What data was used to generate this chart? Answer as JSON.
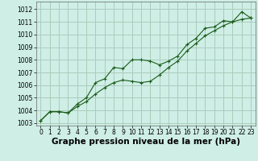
{
  "xlabel": "Graphe pression niveau de la mer (hPa)",
  "background_color": "#ceeee6",
  "grid_color": "#aaccbb",
  "line_color": "#1a5c1a",
  "xlim": [
    -0.5,
    23.5
  ],
  "ylim": [
    1002.8,
    1012.6
  ],
  "yticks": [
    1003,
    1004,
    1005,
    1006,
    1007,
    1008,
    1009,
    1010,
    1011,
    1012
  ],
  "xticks": [
    0,
    1,
    2,
    3,
    4,
    5,
    6,
    7,
    8,
    9,
    10,
    11,
    12,
    13,
    14,
    15,
    16,
    17,
    18,
    19,
    20,
    21,
    22,
    23
  ],
  "series1_x": [
    0,
    1,
    2,
    3,
    4,
    5,
    6,
    7,
    8,
    9,
    10,
    11,
    12,
    13,
    14,
    15,
    16,
    17,
    18,
    19,
    20,
    21,
    22,
    23
  ],
  "series1_y": [
    1003.2,
    1003.9,
    1003.9,
    1003.8,
    1004.5,
    1005.0,
    1006.2,
    1006.5,
    1007.4,
    1007.3,
    1008.0,
    1008.0,
    1007.9,
    1007.6,
    1007.9,
    1008.3,
    1009.2,
    1009.7,
    1010.5,
    1010.6,
    1011.1,
    1011.0,
    1011.8,
    1011.3
  ],
  "series2_x": [
    0,
    1,
    2,
    3,
    4,
    5,
    6,
    7,
    8,
    9,
    10,
    11,
    12,
    13,
    14,
    15,
    16,
    17,
    18,
    19,
    20,
    21,
    22,
    23
  ],
  "series2_y": [
    1003.2,
    1003.9,
    1003.9,
    1003.8,
    1004.3,
    1004.7,
    1005.3,
    1005.8,
    1006.2,
    1006.4,
    1006.3,
    1006.2,
    1006.3,
    1006.8,
    1007.4,
    1007.9,
    1008.7,
    1009.3,
    1009.9,
    1010.3,
    1010.7,
    1011.0,
    1011.2,
    1011.3
  ],
  "tick_fontsize": 5.5,
  "xlabel_fontsize": 7.5
}
